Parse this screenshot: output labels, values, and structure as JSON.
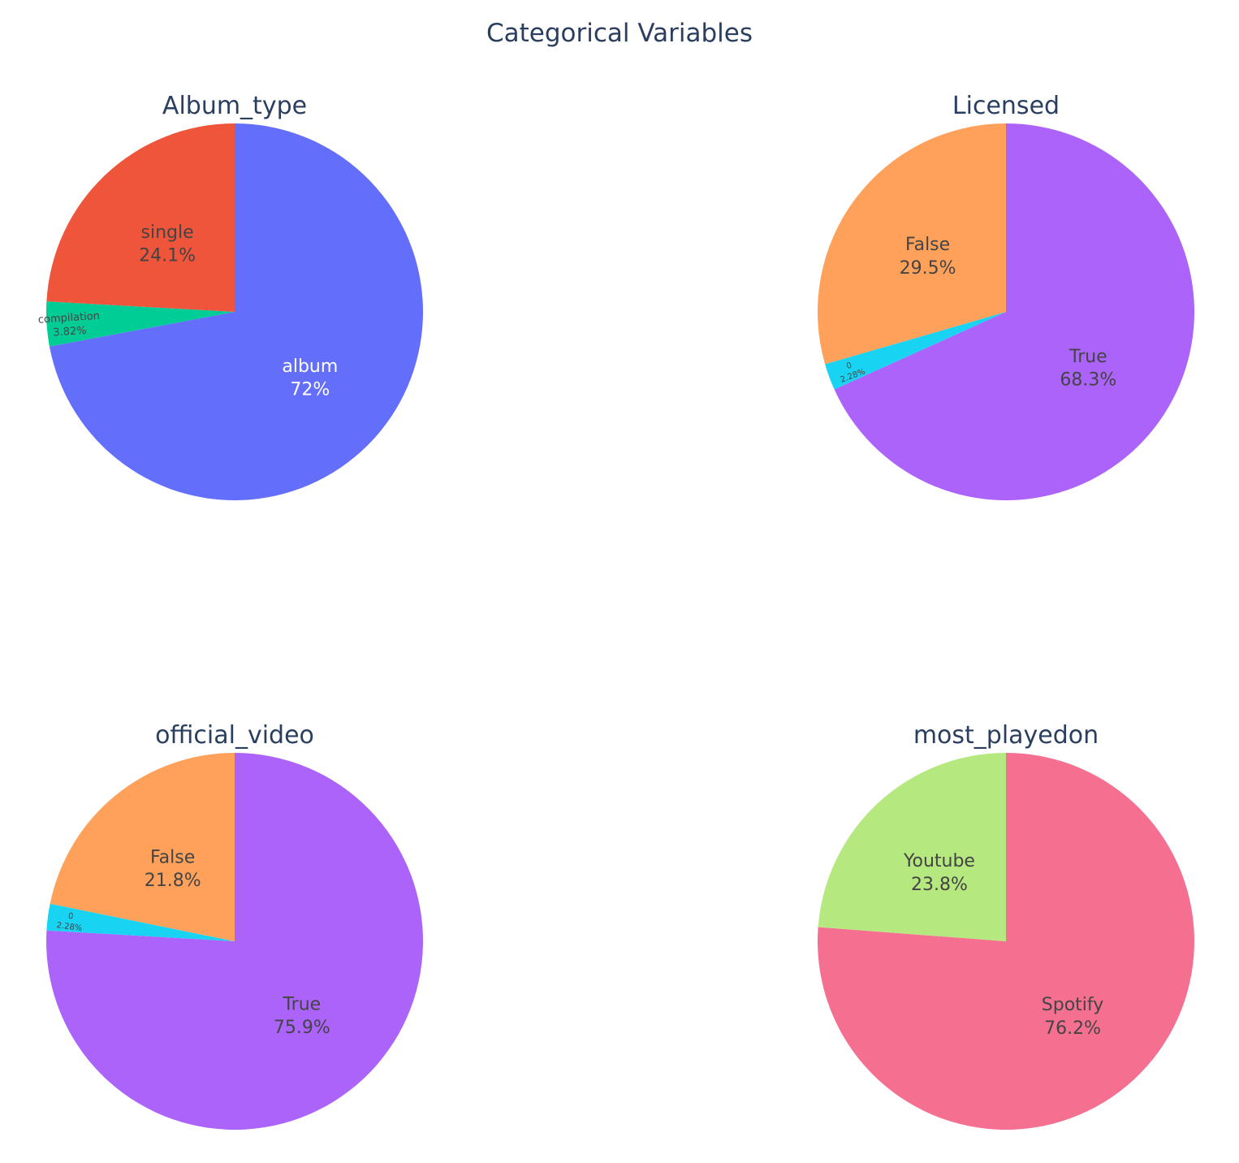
{
  "title": "Categorical Variables",
  "colors": {
    "text": "#2a3f5f",
    "label_dark": "#444444",
    "label_light": "#ffffff",
    "slice_border": "#ffffff"
  },
  "chart_data": [
    {
      "type": "pie",
      "title": "Album_type",
      "direction": "clockwise",
      "start": "12 o'clock",
      "slices": [
        {
          "label": "album",
          "value": 72.0,
          "text": "72%",
          "color": "#636efa"
        },
        {
          "label": "compilation",
          "value": 3.82,
          "text": "3.82%",
          "color": "#00cc96"
        },
        {
          "label": "single",
          "value": 24.1,
          "text": "24.1%",
          "color": "#ef553b"
        }
      ]
    },
    {
      "type": "pie",
      "title": "Licensed",
      "direction": "clockwise",
      "start": "12 o'clock",
      "slices": [
        {
          "label": "True",
          "value": 68.3,
          "text": "68.3%",
          "color": "#ab63fa"
        },
        {
          "label": "0",
          "value": 2.28,
          "text": "2.28%",
          "color": "#19d3f3"
        },
        {
          "label": "False",
          "value": 29.5,
          "text": "29.5%",
          "color": "#ffa15a"
        }
      ]
    },
    {
      "type": "pie",
      "title": "official_video",
      "direction": "clockwise",
      "start": "12 o'clock",
      "slices": [
        {
          "label": "True",
          "value": 75.9,
          "text": "75.9%",
          "color": "#ab63fa"
        },
        {
          "label": "0",
          "value": 2.28,
          "text": "2.28%",
          "color": "#19d3f3"
        },
        {
          "label": "False",
          "value": 21.8,
          "text": "21.8%",
          "color": "#ffa15a"
        }
      ]
    },
    {
      "type": "pie",
      "title": "most_playedon",
      "direction": "clockwise",
      "start": "12 o'clock",
      "slices": [
        {
          "label": "Spotify",
          "value": 76.2,
          "text": "76.2%",
          "color": "#f56f91"
        },
        {
          "label": "Youtube",
          "value": 23.8,
          "text": "23.8%",
          "color": "#b6e880"
        }
      ]
    }
  ]
}
